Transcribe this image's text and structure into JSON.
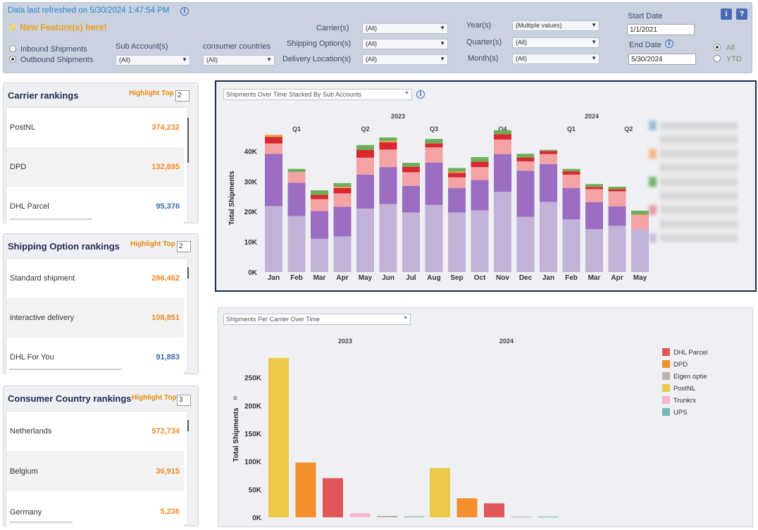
{
  "header": {
    "refreshed": "Data last refreshed on 5/30/2024 1:47:54 PM",
    "new_feature": "New Feature(s) here!",
    "new_feature_icon": "sparkle-icon"
  },
  "filters": {
    "inbound": "Inbound Shipments",
    "outbound": "Outbound Shipments",
    "sub_account_label": "Sub Account(s)",
    "sub_account_value": "(All)",
    "consumer_countries_label": "consumer countries",
    "consumer_countries_value": "(All)",
    "carrier_label": "Carrier(s)",
    "carrier_value": "(All)",
    "shipping_label": "Shipping Option(s)",
    "shipping_value": "(All)",
    "delivery_label": "Delivery Location(s)",
    "delivery_value": "(All)",
    "year_label": "Year(s)",
    "year_value": "(Multiple values)",
    "quarter_label": "Quarter(s)",
    "quarter_value": "(All)",
    "month_label": "Month(s)",
    "month_value": "(All)",
    "start_label": "Start Date",
    "start_value": "1/1/2021",
    "end_label": "End Date",
    "end_value": "5/30/2024",
    "all": "All",
    "ytd": "YTD",
    "info_btn": "i",
    "help_btn": "?"
  },
  "carrier_rankings": {
    "title": "Carrier rankings",
    "highlight": "Highlight Top",
    "highlight_value": "2",
    "rows": [
      {
        "name": "PostNL",
        "value": "374,232"
      },
      {
        "name": "DPD",
        "value": "132,895"
      },
      {
        "name": "DHL Parcel",
        "value": "95,376"
      }
    ]
  },
  "shipping_rankings": {
    "title": "Shipping Option  rankings",
    "highlight": "Highlight Top",
    "highlight_value": "2",
    "rows": [
      {
        "name": "Standard shipment",
        "value": "286,462"
      },
      {
        "name": "interactive delivery",
        "value": "108,851"
      },
      {
        "name": "DHL For You",
        "value": "91,883"
      }
    ]
  },
  "country_rankings": {
    "title": "Consumer Country rankings",
    "highlight": "Highlight Top",
    "highlight_value": "3",
    "rows": [
      {
        "name": "Netherlands",
        "value": "572,734"
      },
      {
        "name": "Belgium",
        "value": "36,915"
      },
      {
        "name": "Germany",
        "value": "5,236"
      }
    ]
  },
  "colors": {
    "highlight": "#f08a24",
    "normal": "#3d6aa8"
  },
  "chart_data": [
    {
      "type": "bar",
      "selector": "Shipments Over Time Stacked By Sub Accounts",
      "ylabel": "Total Shipments",
      "years": [
        "2023",
        "2024"
      ],
      "quarters": [
        "Q1",
        "Q2",
        "Q3",
        "Q4",
        "Q1",
        "Q2"
      ],
      "categories": [
        "Jan",
        "Feb",
        "Mar",
        "Apr",
        "May",
        "Jun",
        "Jul",
        "Aug",
        "Sep",
        "Oct",
        "Nov",
        "Dec",
        "Jan",
        "Feb",
        "Mar",
        "Apr",
        "May"
      ],
      "yticks": [
        "0K",
        "10K",
        "20K",
        "30K",
        "40K"
      ],
      "ylim": [
        0,
        48000
      ],
      "series": [
        {
          "color": "#c2b2d8",
          "values": [
            21800,
            18500,
            11000,
            11800,
            21000,
            22500,
            19700,
            22200,
            19700,
            20400,
            26500,
            18300,
            23200,
            17400,
            14200,
            15300,
            14200
          ]
        },
        {
          "color": "#9a6cc2",
          "values": [
            17300,
            11000,
            9200,
            9800,
            11200,
            12200,
            8800,
            14000,
            8100,
            10000,
            12500,
            15200,
            12500,
            10400,
            8900,
            6400,
            0
          ]
        },
        {
          "color": "#f4a2a3",
          "values": [
            3400,
            3600,
            3900,
            4400,
            5600,
            5800,
            4500,
            5000,
            3500,
            4300,
            4800,
            3100,
            3300,
            4400,
            4300,
            5000,
            4800
          ]
        },
        {
          "color": "#d9282f",
          "values": [
            2200,
            0,
            1400,
            1800,
            2600,
            2400,
            1800,
            1300,
            1500,
            1800,
            1800,
            1300,
            1000,
            1100,
            700,
            700,
            0
          ]
        },
        {
          "color": "#f0a256",
          "values": [
            700,
            0,
            0,
            400,
            0,
            500,
            0,
            0,
            400,
            0,
            0,
            0,
            0,
            0,
            0,
            0,
            0
          ]
        },
        {
          "color": "#6dae59",
          "values": [
            0,
            1000,
            1500,
            1200,
            1600,
            1100,
            1300,
            1500,
            1200,
            1500,
            1300,
            1200,
            400,
            800,
            1000,
            800,
            1300
          ]
        }
      ]
    },
    {
      "type": "bar",
      "selector": "Shipments Per Carrier Over Time",
      "ylabel": "Total Shipments",
      "years": [
        "2023",
        "2024"
      ],
      "yticks": [
        "0K",
        "50K",
        "100K",
        "150K",
        "200K",
        "250K"
      ],
      "ylim": [
        0,
        290000
      ],
      "legend": [
        {
          "name": "DHL Parcel",
          "color": "#e15759"
        },
        {
          "name": "DPD",
          "color": "#f28e2b"
        },
        {
          "name": "Eigen optie",
          "color": "#bab0ac"
        },
        {
          "name": "PostNL",
          "color": "#edc948"
        },
        {
          "name": "Trunkrs",
          "color": "#f7b6d2"
        },
        {
          "name": "UPS",
          "color": "#76b7b2"
        }
      ],
      "bars_2023": [
        {
          "carrier": "PostNL",
          "value": 285000
        },
        {
          "carrier": "DPD",
          "value": 98000
        },
        {
          "carrier": "DHL Parcel",
          "value": 70000
        },
        {
          "carrier": "Trunkrs",
          "value": 7000
        },
        {
          "carrier": "Eigen optie",
          "value": 2500
        },
        {
          "carrier": "UPS",
          "value": 1500
        }
      ],
      "bars_2024": [
        {
          "carrier": "PostNL",
          "value": 88000
        },
        {
          "carrier": "DPD",
          "value": 34000
        },
        {
          "carrier": "DHL Parcel",
          "value": 25000
        },
        {
          "carrier": "Eigen optie",
          "value": 1000
        },
        {
          "carrier": "UPS",
          "value": 600
        }
      ]
    }
  ]
}
